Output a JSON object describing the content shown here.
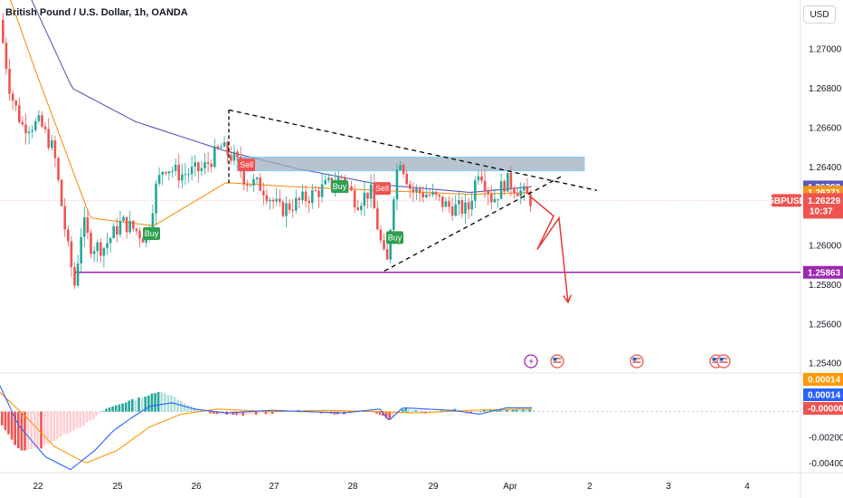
{
  "header": {
    "title": "British Pound / U.S. Dollar, 1h, OANDA",
    "currency_button": "USD"
  },
  "colors": {
    "up": "#26a69a",
    "down": "#ef5350",
    "ma_fast": "#f7931a",
    "ma_slow": "#5b57b8",
    "support": "#9c27b0",
    "resistance_zone": "#9fb0c0",
    "forecast_arrow": "#e53935",
    "macd_line": "#2962ff",
    "signal_line": "#ff9800"
  },
  "chart_data": [
    {
      "type": "candlestick",
      "symbol": "GBPUSD",
      "title": "British Pound / U.S. Dollar, 1h, OANDA",
      "x_tick_labels": [
        "22",
        "25",
        "26",
        "27",
        "28",
        "29",
        "Apr",
        "2",
        "3",
        "4"
      ],
      "y_tick_labels": [
        "1.27000",
        "1.26800",
        "1.26600",
        "1.26400",
        "1.26000",
        "1.25800",
        "1.25600",
        "1.25400"
      ],
      "ylim": [
        1.2535,
        1.2725
      ],
      "grid": false,
      "ohlc_anchors": [
        [
          0,
          1.2715
        ],
        [
          12,
          1.2678
        ],
        [
          25,
          1.2661
        ],
        [
          45,
          1.2662
        ],
        [
          60,
          1.2648
        ],
        [
          75,
          1.26
        ],
        [
          83,
          1.258
        ],
        [
          92,
          1.2613
        ],
        [
          100,
          1.26
        ],
        [
          115,
          1.2599
        ],
        [
          135,
          1.2612
        ],
        [
          150,
          1.2608
        ],
        [
          163,
          1.2603
        ],
        [
          172,
          1.2628
        ],
        [
          182,
          1.2641
        ],
        [
          200,
          1.2636
        ],
        [
          225,
          1.2639
        ],
        [
          245,
          1.265
        ],
        [
          262,
          1.2643
        ],
        [
          272,
          1.2633
        ],
        [
          290,
          1.263
        ],
        [
          310,
          1.2618
        ],
        [
          330,
          1.2622
        ],
        [
          350,
          1.2627
        ],
        [
          378,
          1.2635
        ],
        [
          395,
          1.2622
        ],
        [
          410,
          1.2628
        ],
        [
          422,
          1.26
        ],
        [
          428,
          1.2588
        ],
        [
          435,
          1.2625
        ],
        [
          442,
          1.2646
        ],
        [
          455,
          1.2628
        ],
        [
          475,
          1.2626
        ],
        [
          495,
          1.262
        ],
        [
          518,
          1.2618
        ],
        [
          530,
          1.264
        ],
        [
          545,
          1.2623
        ],
        [
          560,
          1.2633
        ],
        [
          572,
          1.2629
        ],
        [
          588,
          1.2623
        ]
      ],
      "moving_averages": [
        {
          "name": "MA fast",
          "anchors": [
            [
              0,
              1.274
            ],
            [
              40,
              1.2688
            ],
            [
              100,
              1.2614
            ],
            [
              170,
              1.261
            ],
            [
              250,
              1.2632
            ],
            [
              320,
              1.263
            ],
            [
              420,
              1.2628
            ],
            [
              520,
              1.2626
            ],
            [
              590,
              1.2627
            ]
          ]
        },
        {
          "name": "MA slow",
          "anchors": [
            [
              0,
              1.276
            ],
            [
              80,
              1.268
            ],
            [
              150,
              1.2663
            ],
            [
              250,
              1.2648
            ],
            [
              330,
              1.2639
            ],
            [
              420,
              1.2631
            ],
            [
              520,
              1.2627
            ],
            [
              590,
              1.263
            ]
          ]
        }
      ],
      "price_tags": [
        {
          "value": "1.26298",
          "price": 1.26298,
          "color": "#5b57b8"
        },
        {
          "value": "1.26271",
          "price": 1.26271,
          "color": "#f7931a"
        },
        {
          "symbol": "GBPUSD",
          "value": "1.26229",
          "countdown": "10:37",
          "price": 1.26229,
          "color": "#ef5350"
        },
        {
          "value": "1.25863",
          "price": 1.25863,
          "color": "#9c27b0"
        }
      ],
      "support_level": 1.25863,
      "resistance_zone": [
        1.2638,
        1.2645
      ],
      "triangle": {
        "upper_line": [
          [
            253,
            1.2669
          ],
          [
            660,
            1.2628
          ]
        ],
        "lower_line": [
          [
            425,
            1.2587
          ],
          [
            620,
            1.2635
          ]
        ],
        "apex_vertical": [
          253,
          1.2669,
          1.2631
        ]
      },
      "forecast_path": [
        [
          586,
          1.2625
        ],
        [
          612,
          1.2615
        ],
        [
          594,
          1.2598
        ],
        [
          618,
          1.2614
        ],
        [
          628,
          1.2571
        ]
      ],
      "signals": [
        {
          "label": "Sell",
          "x": 272,
          "price": 1.2641,
          "type": "sell"
        },
        {
          "label": "Buy",
          "x": 167,
          "price": 1.2606,
          "type": "buy"
        },
        {
          "label": "Buy",
          "x": 375,
          "price": 1.263,
          "type": "buy"
        },
        {
          "label": "Sell",
          "x": 422,
          "price": 1.2629,
          "type": "sell"
        },
        {
          "label": "Buy",
          "x": 436,
          "price": 1.2604,
          "type": "buy"
        }
      ],
      "event_icons": [
        {
          "name": "lightning-icon",
          "x": 587
        },
        {
          "name": "us-flag-icon",
          "x": 616
        },
        {
          "name": "us-flag-icon",
          "x": 704
        },
        {
          "name": "us-flag-icon",
          "x": 792
        },
        {
          "name": "us-flag-icon",
          "x": 800
        }
      ]
    },
    {
      "type": "bar",
      "indicator": "MACD",
      "y_tick_labels": [
        "0.00014",
        "0.00014",
        "-0.00000",
        "-0.00200",
        "-0.00400"
      ],
      "ylim": [
        -0.0046,
        0.003
      ],
      "tag_colors": [
        "#ff9800",
        "#2962ff",
        "#ef5350"
      ],
      "histogram_anchors": [
        [
          0,
          -0.001
        ],
        [
          20,
          -0.003
        ],
        [
          45,
          -0.0028
        ],
        [
          70,
          -0.0018
        ],
        [
          100,
          -0.0007
        ],
        [
          115,
          0.0002
        ],
        [
          140,
          0.0008
        ],
        [
          160,
          0.0012
        ],
        [
          178,
          0.0016
        ],
        [
          195,
          0.001
        ],
        [
          210,
          0.0004
        ],
        [
          230,
          -0.0001
        ],
        [
          260,
          -0.0003
        ],
        [
          300,
          -0.0001
        ],
        [
          330,
          0.0001
        ],
        [
          370,
          -0.0002
        ],
        [
          410,
          0.0001
        ],
        [
          430,
          -0.0006
        ],
        [
          445,
          0.0003
        ],
        [
          470,
          -0.0001
        ],
        [
          500,
          0.0002
        ],
        [
          520,
          -0.0001
        ],
        [
          535,
          0.0002
        ],
        [
          560,
          0.0001
        ],
        [
          590,
          0.0002
        ]
      ],
      "macd_line_anchors": [
        [
          0,
          0.002
        ],
        [
          20,
          -0.001
        ],
        [
          50,
          -0.0035
        ],
        [
          78,
          -0.0045
        ],
        [
          105,
          -0.003
        ],
        [
          125,
          -0.0015
        ],
        [
          145,
          -0.0005
        ],
        [
          165,
          0.0004
        ],
        [
          190,
          0.0007
        ],
        [
          215,
          0.0002
        ],
        [
          250,
          -0.0001
        ],
        [
          300,
          0.0001
        ],
        [
          340,
          0.0
        ],
        [
          380,
          -0.0001
        ],
        [
          420,
          0.0002
        ],
        [
          430,
          -0.0007
        ],
        [
          445,
          0.0003
        ],
        [
          500,
          0.0001
        ],
        [
          530,
          -0.0002
        ],
        [
          560,
          0.0003
        ],
        [
          590,
          0.0003
        ]
      ],
      "signal_line_anchors": [
        [
          0,
          0.0015
        ],
        [
          30,
          -0.0005
        ],
        [
          60,
          -0.0027
        ],
        [
          95,
          -0.004
        ],
        [
          130,
          -0.003
        ],
        [
          165,
          -0.0012
        ],
        [
          200,
          -0.0002
        ],
        [
          240,
          0.0002
        ],
        [
          300,
          0.0
        ],
        [
          360,
          0.0001
        ],
        [
          420,
          0.0
        ],
        [
          460,
          -0.0001
        ],
        [
          520,
          0.0001
        ],
        [
          590,
          0.0002
        ]
      ]
    }
  ]
}
